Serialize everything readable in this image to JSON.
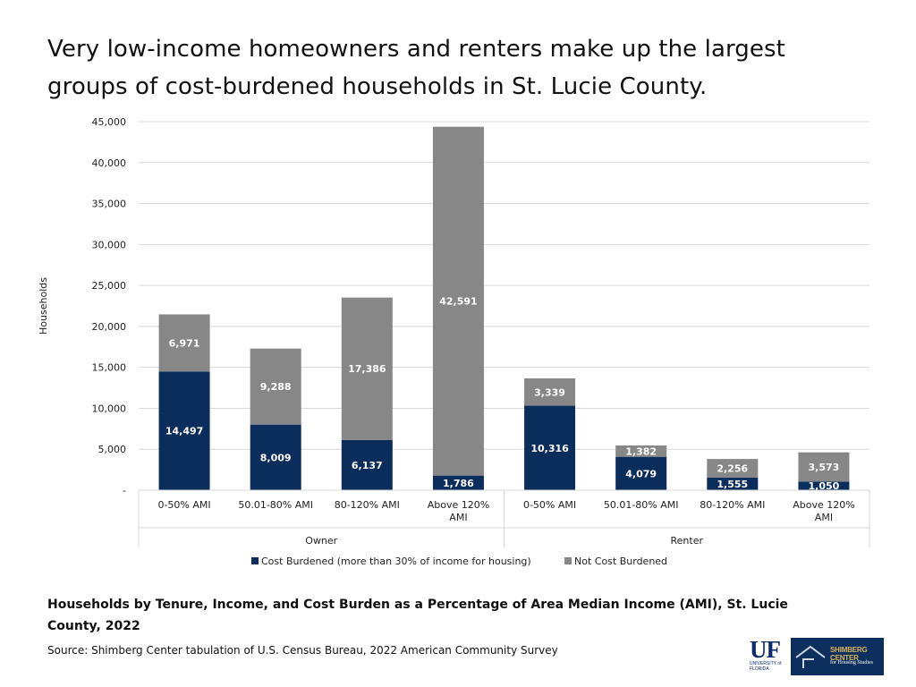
{
  "headline": "Very low-income homeowners and renters make up the largest groups of cost-burdened households in St. Lucie County.",
  "caption": "Households by Tenure, Income, and Cost Burden as a Percentage of Area Median Income (AMI), St. Lucie County, 2022",
  "source": "Source: Shimberg Center tabulation of U.S. Census Bureau, 2022 American Community Survey",
  "logos": {
    "uf_mark": "UF",
    "uf_sub_line1": "UNIVERSITY of",
    "uf_sub_line2": "FLORIDA",
    "shimberg_name": "SHIMBERG CENTER",
    "shimberg_sub": "for Housing Studies"
  },
  "colors": {
    "cost_burdened": "#0b2d5c",
    "not_cost_burdened": "#878787",
    "grid": "#d9d9d9",
    "axis_text": "#222222"
  },
  "chart_data": {
    "type": "bar",
    "stacked": true,
    "title": "",
    "ylabel": "Households",
    "xlabel": "",
    "ylim": [
      0,
      45000
    ],
    "yticks": [
      0,
      5000,
      10000,
      15000,
      20000,
      25000,
      30000,
      35000,
      40000,
      45000
    ],
    "ytick_labels": [
      "-",
      "5,000",
      "10,000",
      "15,000",
      "20,000",
      "25,000",
      "30,000",
      "35,000",
      "40,000",
      "45,000"
    ],
    "categories": [
      {
        "label_lines": [
          "0-50% AMI"
        ],
        "group": "Owner"
      },
      {
        "label_lines": [
          "50.01-80% AMI"
        ],
        "group": "Owner"
      },
      {
        "label_lines": [
          "80-120% AMI"
        ],
        "group": "Owner"
      },
      {
        "label_lines": [
          "Above 120%",
          "AMI"
        ],
        "group": "Owner"
      },
      {
        "label_lines": [
          "0-50% AMI"
        ],
        "group": "Renter"
      },
      {
        "label_lines": [
          "50.01-80% AMI"
        ],
        "group": "Renter"
      },
      {
        "label_lines": [
          "80-120% AMI"
        ],
        "group": "Renter"
      },
      {
        "label_lines": [
          "Above 120%",
          "AMI"
        ],
        "group": "Renter"
      }
    ],
    "groups": [
      "Owner",
      "Renter"
    ],
    "series": [
      {
        "name": "Cost Burdened (more than 30% of income for housing)",
        "values": [
          14497,
          8009,
          6137,
          1786,
          10316,
          4079,
          1555,
          1050
        ],
        "labels": [
          "14,497",
          "8,009",
          "6,137",
          "1,786",
          "10,316",
          "4,079",
          "1,555",
          "1,050"
        ]
      },
      {
        "name": "Not Cost Burdened",
        "values": [
          6971,
          9288,
          17386,
          42591,
          3339,
          1382,
          2256,
          3573
        ],
        "labels": [
          "6,971",
          "9,288",
          "17,386",
          "42,591",
          "3,339",
          "1,382",
          "2,256",
          "3,573"
        ]
      }
    ],
    "legend_position": "bottom"
  }
}
